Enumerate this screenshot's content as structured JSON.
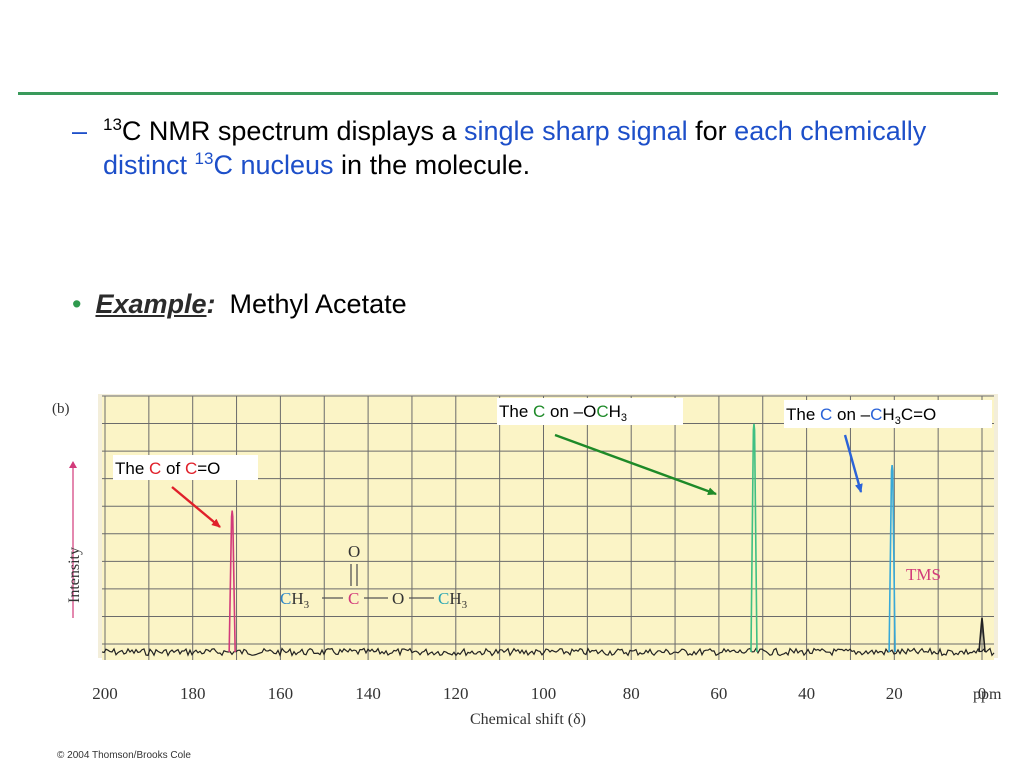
{
  "bullets": {
    "dash": "–",
    "item1_segments": [
      {
        "text": "13",
        "sup": true,
        "hl": false
      },
      {
        "text": "C NMR spectrum displays a ",
        "sup": false,
        "hl": false
      },
      {
        "text": "single sharp signal",
        "sup": false,
        "hl": true
      },
      {
        "text": " for ",
        "sup": false,
        "hl": false
      },
      {
        "text": "each chemically distinct ",
        "sup": false,
        "hl": true
      },
      {
        "text": "13",
        "sup": true,
        "hl": true
      },
      {
        "text": "C nucleus",
        "sup": false,
        "hl": true
      },
      {
        "text": " in the molecule.",
        "sup": false,
        "hl": false
      }
    ],
    "dot": "•",
    "example_label": "Example",
    "example_colon": ":",
    "example_value": "Methyl Acetate"
  },
  "chart_data": {
    "type": "line",
    "panel_label": "(b)",
    "xlabel": "Chemical shift (δ)",
    "ylabel": "Intensity",
    "x_unit": "ppm",
    "xlim": [
      200,
      0
    ],
    "x_ticks": [
      200,
      180,
      160,
      140,
      120,
      100,
      80,
      60,
      40,
      20,
      0
    ],
    "grid": true,
    "peaks": [
      {
        "x": 171,
        "height": 0.62,
        "color": "#d23a7a"
      },
      {
        "x": 52,
        "height": 1.0,
        "color": "#3fbf83"
      },
      {
        "x": 20.5,
        "height": 0.82,
        "color": "#38a9d8"
      },
      {
        "x": 0,
        "height": 0.15,
        "color": "#222222"
      }
    ],
    "tms_label": "TMS",
    "structure": {
      "top_atom": "O",
      "double_bond": "‖",
      "ch3_left_c": "C",
      "ch3_left_h": "H",
      "ch3_left_sub": "3",
      "carbonyl_c": "C",
      "oxygen": "O",
      "ch3_right_c": "C",
      "ch3_right_h": "H",
      "ch3_right_sub": "3",
      "bond": "—"
    },
    "annotations": {
      "carbonyl": {
        "the": "The ",
        "c": "C",
        "of": " of ",
        "c2": "C",
        "rest": "=O"
      },
      "och3": {
        "the": "The ",
        "c": "C",
        "on": "  on –O",
        "c2": "C",
        "h": "H",
        "sub": "3"
      },
      "ch3c": {
        "the": "The ",
        "c": "C",
        "on": " on –",
        "c2": "C",
        "h": "H",
        "sub": "3",
        "rest": "C=O"
      }
    },
    "copyright": "© 2004 Thomson/Brooks Cole"
  },
  "colors": {
    "accent_blue": "#1d4fc9",
    "rule_green": "#3a9a5b",
    "plot_bg": "#fbf4c6",
    "grid": "#6b6b6b",
    "annot_red": "#e0202a",
    "annot_green": "#1e8a28",
    "annot_blue": "#2b63d8",
    "tms_pink": "#d23a7a",
    "struct_carbonyl_red": "#d23a7a",
    "struct_och3_teal": "#2aa6b3",
    "struct_ch3_blue": "#2e86c8"
  }
}
